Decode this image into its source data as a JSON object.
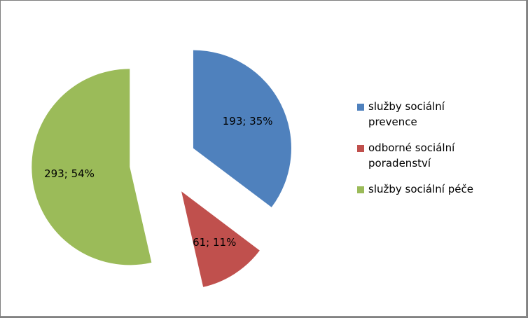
{
  "chart_data": {
    "type": "pie",
    "exploded": true,
    "slices": [
      {
        "label": "služby sociální prevence",
        "value": 193,
        "percent": 35,
        "data_label": "193; 35%",
        "color": "#4f81bd"
      },
      {
        "label": "odborné sociální poradenství",
        "value": 61,
        "percent": 11,
        "data_label": "61; 11%",
        "color": "#c0504d"
      },
      {
        "label": "služby sociální péče",
        "value": 293,
        "percent": 54,
        "data_label": "293; 54%",
        "color": "#9bbb59"
      }
    ],
    "legend_position": "right"
  }
}
